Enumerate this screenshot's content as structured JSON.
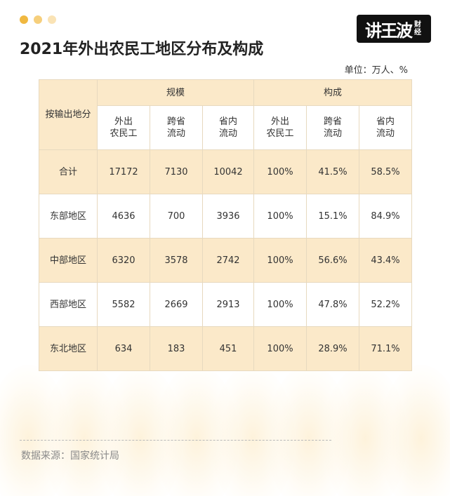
{
  "window": {
    "dot_colors": [
      "#f0b840",
      "#f6cf7c",
      "#fae3b5"
    ]
  },
  "logo": {
    "main": "讲王波",
    "sub": "财经"
  },
  "title": "2021年外出农民工地区分布及构成",
  "unit": "单位：万人、%",
  "table": {
    "row_header": "按输出地分",
    "groups": [
      "规模",
      "构成"
    ],
    "columns": [
      "外出\n农民工",
      "跨省\n流动",
      "省内\n流动",
      "外出\n农民工",
      "跨省\n流动",
      "省内\n流动"
    ],
    "rows": [
      {
        "region": "合计",
        "values": [
          "17172",
          "7130",
          "10042",
          "100%",
          "41.5%",
          "58.5%"
        ]
      },
      {
        "region": "东部地区",
        "values": [
          "4636",
          "700",
          "3936",
          "100%",
          "15.1%",
          "84.9%"
        ]
      },
      {
        "region": "中部地区",
        "values": [
          "6320",
          "3578",
          "2742",
          "100%",
          "56.6%",
          "43.4%"
        ]
      },
      {
        "region": "西部地区",
        "values": [
          "5582",
          "2669",
          "2913",
          "100%",
          "47.8%",
          "52.2%"
        ]
      },
      {
        "region": "东北地区",
        "values": [
          "634",
          "183",
          "451",
          "100%",
          "28.9%",
          "71.1%"
        ]
      }
    ]
  },
  "source": "数据来源：国家统计局"
}
